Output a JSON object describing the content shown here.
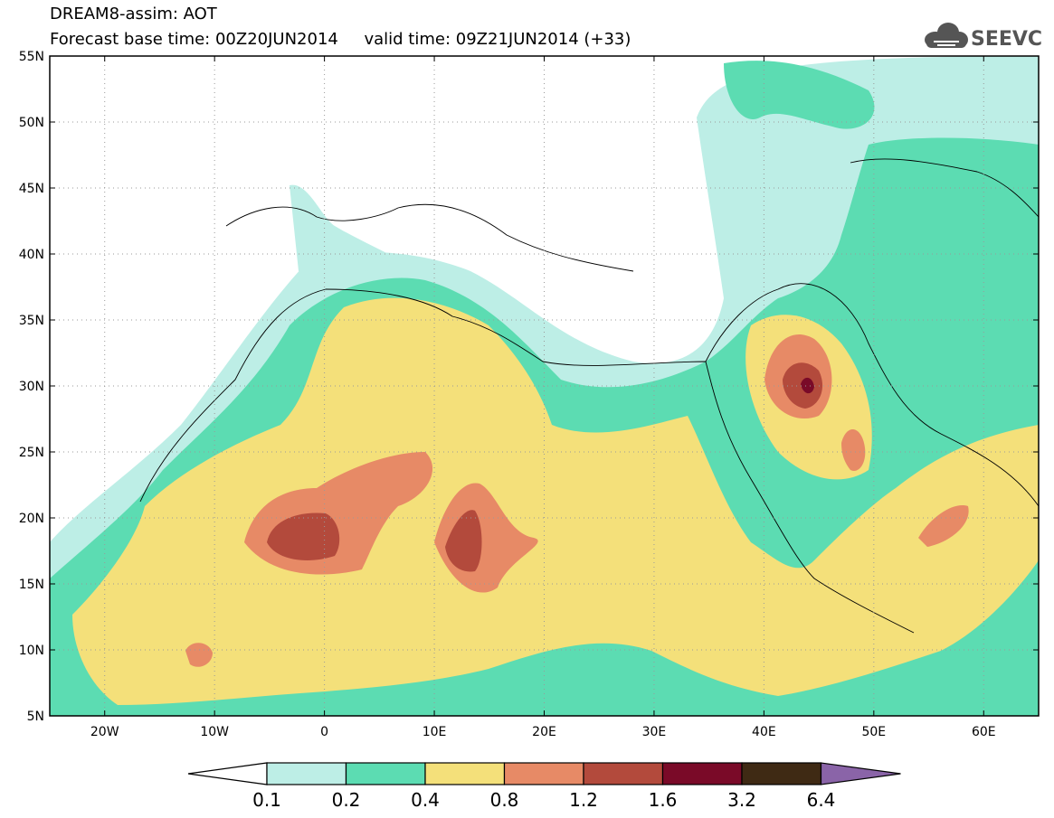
{
  "header": {
    "title_line1": "DREAM8-assim: AOT",
    "title_line2": "Forecast base time: 00Z20JUN2014     valid time: 09Z21JUN2014 (+33)",
    "logo_text": "SEEVCCC"
  },
  "map": {
    "type": "filled-contour",
    "variable": "AOT",
    "lon_range": [
      -25,
      65
    ],
    "lat_range": [
      5,
      55
    ],
    "lat_ticks": [
      "5N",
      "10N",
      "15N",
      "20N",
      "25N",
      "30N",
      "35N",
      "40N",
      "45N",
      "50N",
      "55N"
    ],
    "lon_ticks": [
      "20W",
      "10W",
      "0",
      "10E",
      "20E",
      "30E",
      "40E",
      "50E",
      "60E"
    ],
    "grid": "dotted"
  },
  "legend": {
    "levels": [
      "0.1",
      "0.2",
      "0.4",
      "0.8",
      "1.2",
      "1.6",
      "3.2",
      "6.4"
    ],
    "colors": [
      "#ffffff",
      "#bdeee6",
      "#5cdcb2",
      "#f4e07a",
      "#e78a66",
      "#b34a3c",
      "#7a0a28",
      "#3f2a14",
      "#8a64a8"
    ]
  }
}
